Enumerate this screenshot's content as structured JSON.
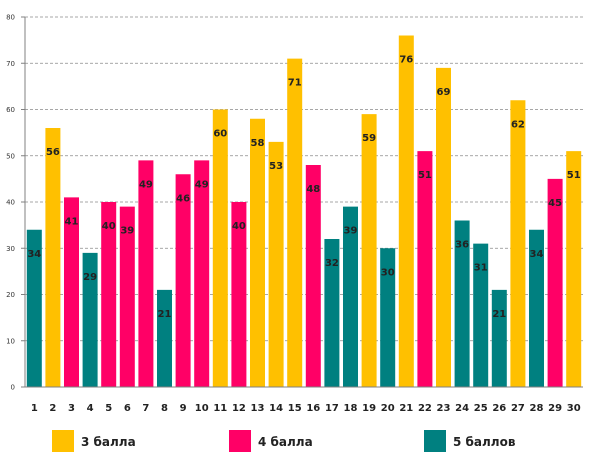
{
  "chart_data": {
    "type": "bar",
    "ylim": [
      0,
      80
    ],
    "yticks": [
      0,
      10,
      20,
      30,
      40,
      50,
      60,
      70,
      80
    ],
    "grid": true,
    "legend_position": "bottom",
    "categories": [
      "1",
      "2",
      "3",
      "4",
      "5",
      "6",
      "7",
      "8",
      "9",
      "10",
      "11",
      "12",
      "13",
      "14",
      "15",
      "16",
      "17",
      "18",
      "19",
      "20",
      "21",
      "22",
      "23",
      "24",
      "25",
      "26",
      "27",
      "28",
      "29",
      "30"
    ],
    "values": [
      34,
      56,
      41,
      29,
      40,
      39,
      49,
      21,
      46,
      49,
      60,
      40,
      58,
      53,
      71,
      48,
      32,
      39,
      59,
      30,
      76,
      51,
      69,
      36,
      31,
      21,
      62,
      34,
      45,
      51
    ],
    "groups": [
      "g5",
      "g3",
      "g4",
      "g5",
      "g4",
      "g4",
      "g4",
      "g5",
      "g4",
      "g4",
      "g3",
      "g4",
      "g3",
      "g3",
      "g3",
      "g4",
      "g5",
      "g5",
      "g3",
      "g5",
      "g3",
      "g4",
      "g3",
      "g5",
      "g5",
      "g5",
      "g3",
      "g5",
      "g4",
      "g3"
    ],
    "legend": [
      {
        "key": "g3",
        "name": "3 балла",
        "color": "#ffc000"
      },
      {
        "key": "g4",
        "name": "4 балла",
        "color": "#ff0066"
      },
      {
        "key": "g5",
        "name": "5 баллов",
        "color": "#008080"
      }
    ]
  }
}
